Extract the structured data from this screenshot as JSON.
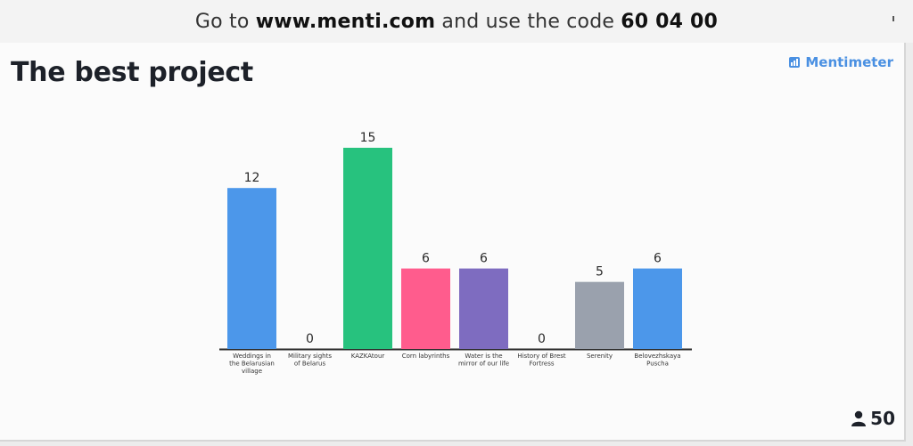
{
  "banner": {
    "prefix": "Go to ",
    "url": "www.menti.com",
    "middle": " and use the code ",
    "code": "60 04 00"
  },
  "slide": {
    "title": "The best project",
    "brand": "Mentimeter",
    "participants": "50",
    "participants_icon": "person-icon"
  },
  "chart_data": {
    "type": "bar",
    "categories": [
      "Weddings in the Belarusian village",
      "Military sights of Belarus",
      "KAZKAtour",
      "Corn labyrinths",
      "Water is the mirror of our life",
      "History of Brest Fortress",
      "Serenity",
      "Belovezhskaya Puscha"
    ],
    "category_lines": [
      [
        "Weddings in",
        "the Belarusian",
        "village"
      ],
      [
        "Military sights",
        "of Belarus"
      ],
      [
        "KAZKAtour"
      ],
      [
        "Corn labyrinths"
      ],
      [
        "Water is the",
        "mirror of our life"
      ],
      [
        "History of Brest",
        "Fortress"
      ],
      [
        "Serenity"
      ],
      [
        "Belovezhskaya",
        "Puscha"
      ]
    ],
    "values": [
      12,
      0,
      15,
      6,
      6,
      0,
      5,
      6
    ],
    "colors": [
      "#4c97ea",
      "#4c97ea",
      "#27c27e",
      "#ff5c8d",
      "#7e6cc0",
      "#4c97ea",
      "#9aa1ad",
      "#4c97ea"
    ],
    "ylim": [
      0,
      15
    ],
    "title": "",
    "xlabel": "",
    "ylabel": "",
    "grid": false,
    "legend": "none"
  }
}
